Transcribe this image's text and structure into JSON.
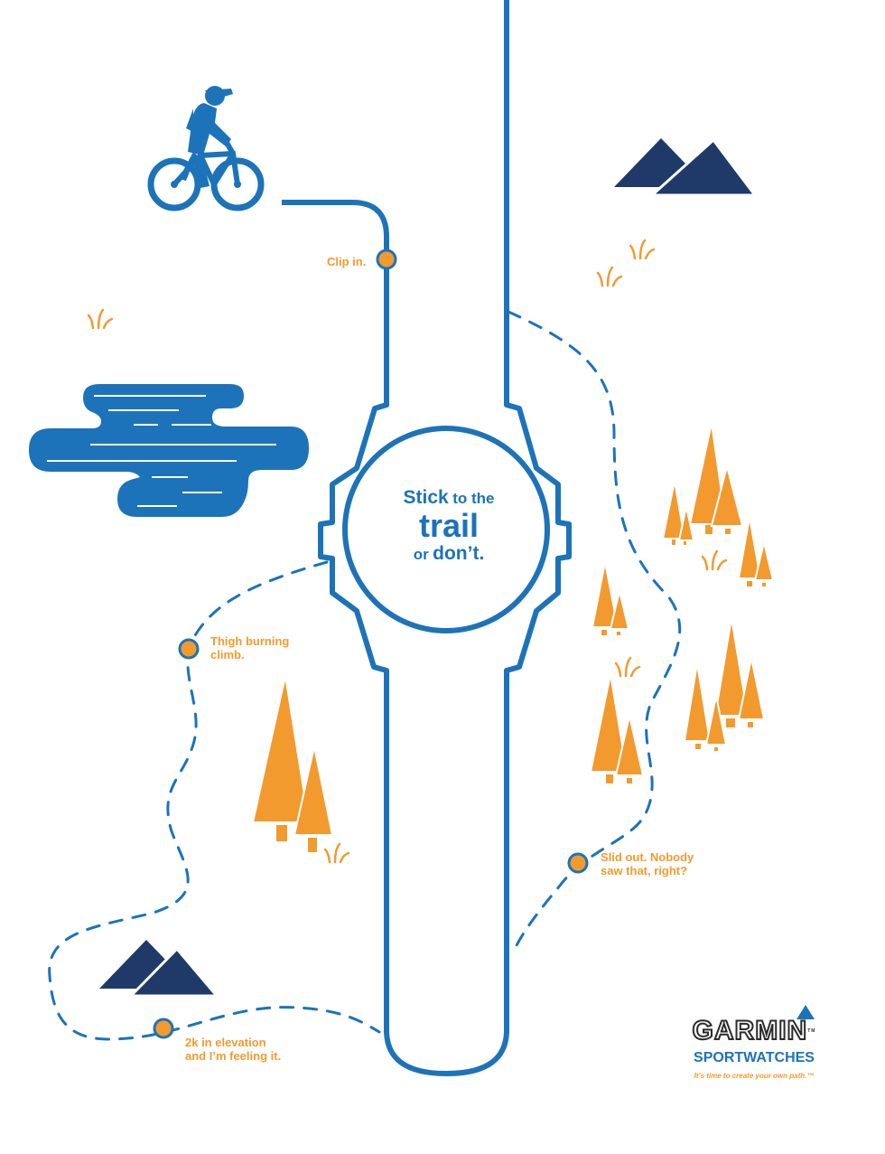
{
  "headline": {
    "line1_a": "Stick",
    "line1_b": "to the",
    "line2": "trail",
    "line3_a": "or",
    "line3_b": "don’t."
  },
  "waypoints": [
    {
      "label": "Clip in."
    },
    {
      "label": "Thigh burning\nclimb."
    },
    {
      "label": "Slid out. Nobody\nsaw that, right?"
    },
    {
      "label": "2k in elevation\nand I’m feeling it."
    }
  ],
  "brand": {
    "logo_text": "GARMIN",
    "tm": "TM",
    "subtitle": "SPORTWATCHES",
    "tagline": "It’s time to create your own path.™"
  },
  "colors": {
    "blue": "#1c73b9",
    "navy": "#1f3a68",
    "orange": "#f39a2e",
    "white": "#ffffff"
  },
  "icons": [
    "cyclist-icon",
    "lake-icon",
    "mountain-icon",
    "tree-icon",
    "grass-icon",
    "garmin-delta-icon"
  ]
}
